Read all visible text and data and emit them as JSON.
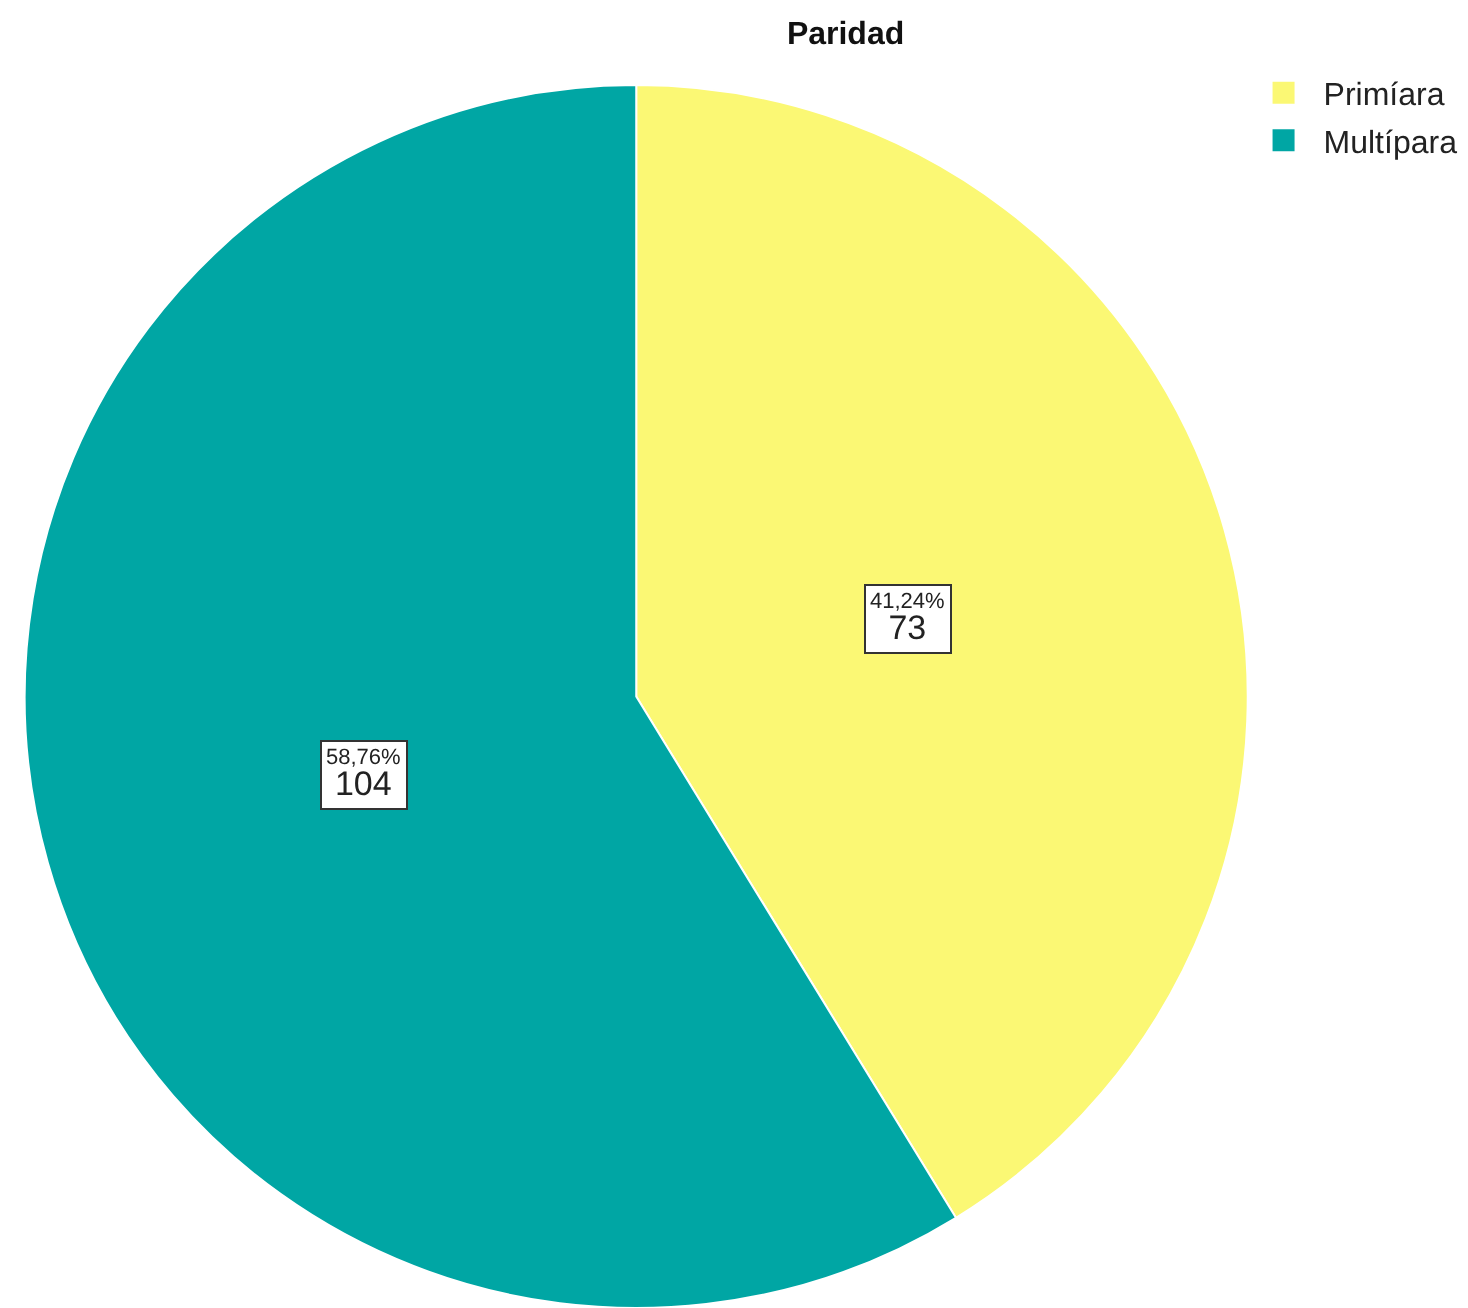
{
  "chart_data": {
    "type": "pie",
    "title": "Paridad",
    "categories": [
      "Primíara",
      "Multípara"
    ],
    "values": [
      73,
      104
    ],
    "colors": [
      "#fbf874",
      "#00a6a4"
    ],
    "value_labels": [
      "41,24%\n73",
      "58,76%\n104"
    ],
    "legend": "top right"
  }
}
